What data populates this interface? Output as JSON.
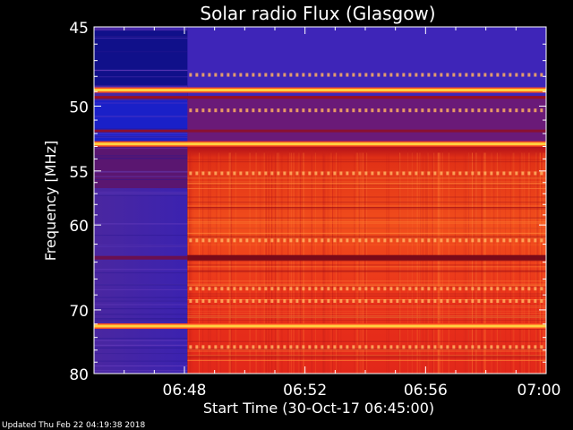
{
  "chart_data": {
    "type": "heatmap",
    "title": "Solar radio Flux (Glasgow)",
    "ylabel": "Frequency [MHz]",
    "xlabel": "Start Time (30-Oct-17 06:45:00)",
    "footer": "Updated Thu Feb 22 04:19:38 2018",
    "y_axis": {
      "range": [
        45,
        80
      ],
      "ticks": [
        45,
        50,
        55,
        60,
        70,
        80
      ],
      "scale": "reciprocal"
    },
    "x_axis": {
      "range": [
        "06:45",
        "07:00"
      ],
      "ticks": [
        {
          "value": "06:48",
          "minute": 48
        },
        {
          "value": "06:52",
          "minute": 52
        },
        {
          "value": "06:56",
          "minute": 56
        },
        {
          "value": "07:00",
          "minute": 60
        }
      ]
    },
    "onset_time": "06:48",
    "colors": {
      "background_low": "#3a1fa8",
      "background_mid": "#5a2a9a",
      "high": "#e83010",
      "highest": "#ffd040",
      "dark_band": "#7a0a18"
    },
    "bands": [
      {
        "mhz": 48.9,
        "kind": "bright"
      },
      {
        "mhz": 52.8,
        "kind": "bright"
      },
      {
        "mhz": 63.5,
        "kind": "dark"
      },
      {
        "mhz": 72.3,
        "kind": "bright"
      }
    ]
  }
}
